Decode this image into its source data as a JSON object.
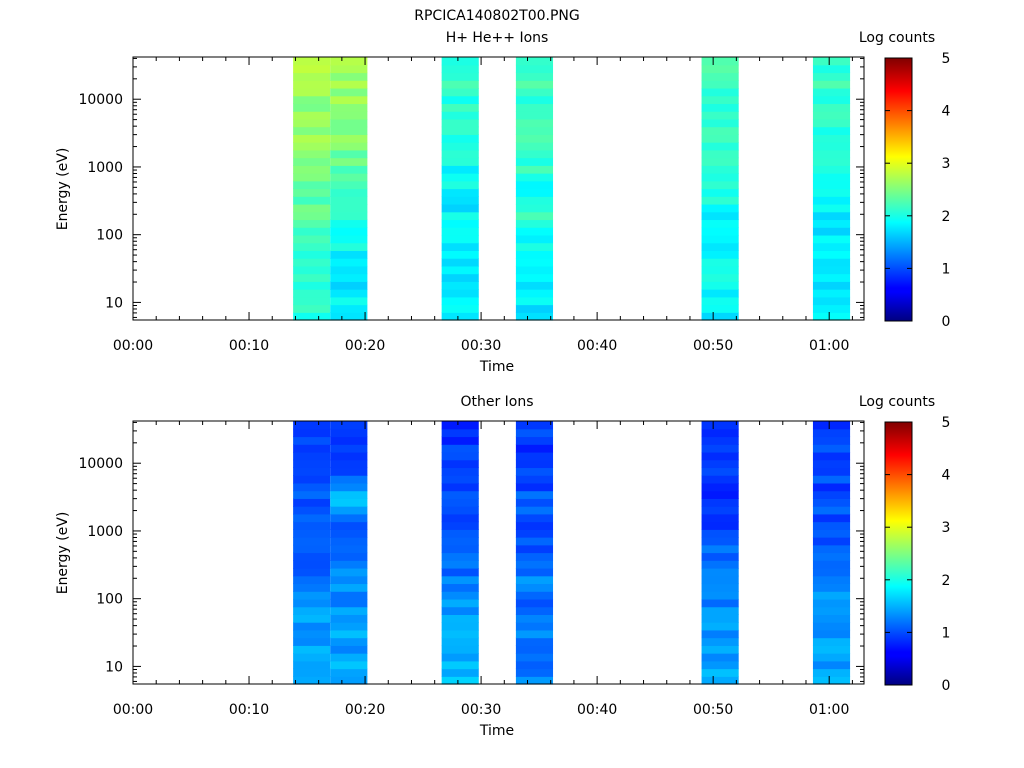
{
  "figure_title": "RPCICA140802T00.PNG",
  "colorbar_ticks": [
    "0",
    "1",
    "2",
    "3",
    "4",
    "5"
  ],
  "chart_data": [
    {
      "type": "heatmap",
      "title": "H+ He++ Ions",
      "xlabel": "Time",
      "ylabel": "Energy (eV)",
      "colorbar_label": "Log counts",
      "colorbar_range": [
        0,
        5
      ],
      "x_ticks": [
        "00:00",
        "00:10",
        "00:20",
        "00:30",
        "00:40",
        "00:50",
        "01:00"
      ],
      "x_range_min": [
        0,
        63
      ],
      "y_scale": "log",
      "y_range": [
        5.5,
        42000
      ],
      "y_ticks": [
        10,
        100,
        1000,
        10000
      ],
      "y_tick_labels": [
        "10",
        "100",
        "1000",
        "10000"
      ],
      "time_blocks_min": [
        [
          13.8,
          17.0
        ],
        [
          17.0,
          20.2
        ],
        [
          26.6,
          29.8
        ],
        [
          33.0,
          36.2
        ],
        [
          49.0,
          52.2
        ],
        [
          58.6,
          61.8
        ]
      ],
      "block_levels": [
        [
          2.12,
          1.78,
          1.75,
          1.8,
          1.85,
          1.72
        ],
        [
          2.08,
          1.8,
          1.75,
          1.82,
          1.85,
          1.75
        ],
        [
          2.1,
          1.82,
          1.78,
          1.85,
          1.88,
          1.78
        ],
        [
          2.18,
          1.92,
          1.8,
          1.92,
          1.9,
          1.8
        ],
        [
          2.3,
          2.15,
          1.82,
          2.08,
          1.92,
          1.82
        ],
        [
          2.4,
          2.28,
          1.85,
          2.0,
          1.95,
          1.85
        ],
        [
          2.5,
          2.35,
          1.9,
          2.1,
          2.0,
          1.95
        ],
        [
          2.62,
          2.48,
          2.0,
          2.38,
          2.1,
          2.05
        ],
        [
          2.58,
          2.7,
          2.02,
          2.12,
          2.15,
          2.05
        ],
        [
          2.65,
          2.58,
          2.1,
          2.22,
          2.12,
          2.1
        ],
        [
          2.7,
          2.6,
          2.15,
          2.25,
          2.15,
          2.12
        ]
      ]
    },
    {
      "type": "heatmap",
      "title": "Other Ions",
      "xlabel": "Time",
      "ylabel": "Energy (eV)",
      "colorbar_label": "Log counts",
      "colorbar_range": [
        0,
        5
      ],
      "x_ticks": [
        "00:00",
        "00:10",
        "00:20",
        "00:30",
        "00:40",
        "00:50",
        "01:00"
      ],
      "x_range_min": [
        0,
        63
      ],
      "y_scale": "log",
      "y_range": [
        5.5,
        42000
      ],
      "y_ticks": [
        10,
        100,
        1000,
        10000
      ],
      "y_tick_labels": [
        "10",
        "100",
        "1000",
        "10000"
      ],
      "time_blocks_min": [
        [
          13.8,
          17.0
        ],
        [
          17.0,
          20.2
        ],
        [
          26.6,
          29.8
        ],
        [
          33.0,
          36.2
        ],
        [
          49.0,
          52.2
        ],
        [
          58.6,
          61.8
        ]
      ],
      "block_levels": [
        [
          1.48,
          1.45,
          1.55,
          1.25,
          1.48,
          1.45
        ],
        [
          1.45,
          1.42,
          1.52,
          1.2,
          1.42,
          1.42
        ],
        [
          1.4,
          1.4,
          1.45,
          1.25,
          1.38,
          1.4
        ],
        [
          1.3,
          1.35,
          1.35,
          1.15,
          1.3,
          1.3
        ],
        [
          1.2,
          1.3,
          1.2,
          1.25,
          1.2,
          1.25
        ],
        [
          1.1,
          1.2,
          1.1,
          1.1,
          1.1,
          1.15
        ],
        [
          0.95,
          1.05,
          1.0,
          1.05,
          0.98,
          1.05
        ],
        [
          1.0,
          1.7,
          1.0,
          1.05,
          0.9,
          1.0
        ],
        [
          0.95,
          1.0,
          0.85,
          0.95,
          0.95,
          0.98
        ],
        [
          0.9,
          0.95,
          0.9,
          0.9,
          0.92,
          0.95
        ],
        [
          0.85,
          0.92,
          0.88,
          0.92,
          0.9,
          0.9
        ]
      ]
    }
  ]
}
